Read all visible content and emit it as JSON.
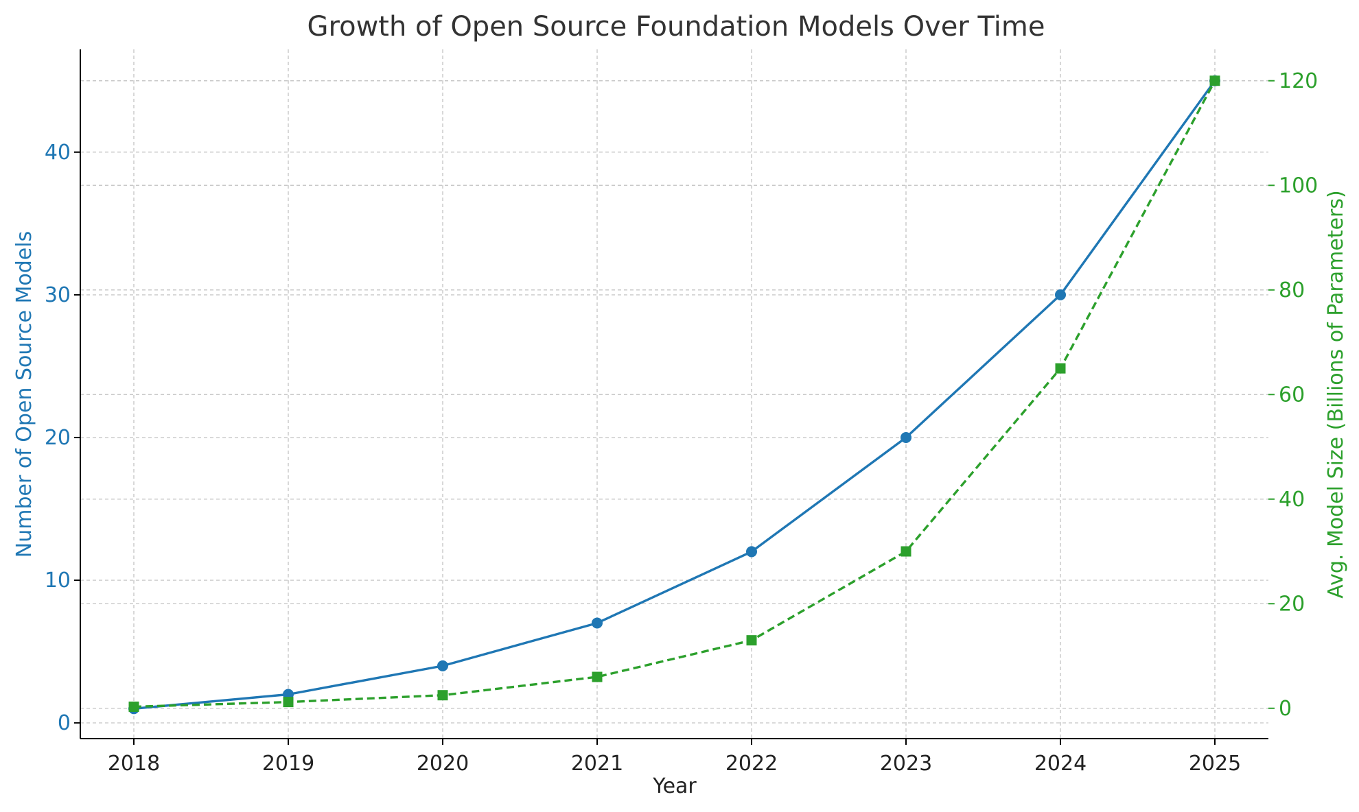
{
  "chart_data": {
    "type": "line",
    "title": "Growth of Open Source Foundation Models Over Time",
    "xlabel": "Year",
    "ylabel_left": "Number of Open Source Models",
    "ylabel_right": "Avg. Model Size (Billions of Parameters)",
    "categories": [
      "2018",
      "2019",
      "2020",
      "2021",
      "2022",
      "2023",
      "2024",
      "2025"
    ],
    "y_left_ticks": [
      "0",
      "10",
      "20",
      "30",
      "40"
    ],
    "y_right_ticks": [
      "0",
      "20",
      "40",
      "60",
      "80",
      "100",
      "120"
    ],
    "ylim_left": [
      -1.1,
      47.2
    ],
    "ylim_right": [
      -5.8,
      126.0
    ],
    "grid": true,
    "series": [
      {
        "axis": "left",
        "color": "#1f77b4",
        "line_style": "solid",
        "marker": "circle",
        "values": [
          1,
          2,
          4,
          7,
          12,
          20,
          30,
          45
        ]
      },
      {
        "axis": "right",
        "color": "#2ca02c",
        "line_style": "dashed",
        "marker": "square",
        "values": [
          0.3,
          1.2,
          2.5,
          6,
          13,
          30,
          65,
          120
        ]
      }
    ]
  }
}
